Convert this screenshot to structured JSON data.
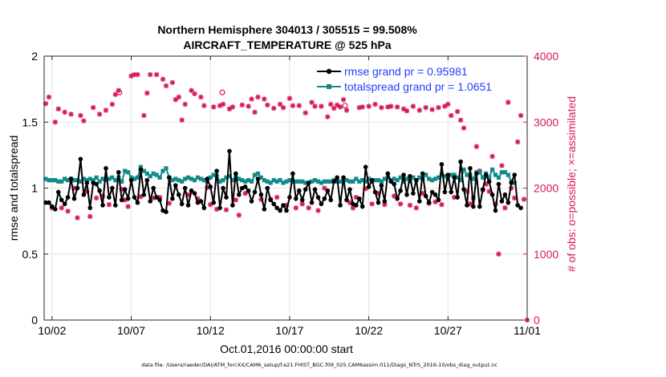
{
  "chart_data": {
    "type": "line",
    "title_line1": "Northern Hemisphere 304013 / 305515 = 99.508%",
    "title_line2": "AIRCRAFT_TEMPERATURE @ 525 hPa",
    "xlabel": "Oct.01,2016 00:00:00 start",
    "ylabel_left": "rmse and totalspread",
    "ylabel_right": "# of obs: o=possible; ×=assimilated",
    "footnote": "data file: /Users/raeder/DAI/ATM_forcXX/CAM6_setup/f.e21.FHIST_BGC.f09_025.CAM6assim.011/Diags_NTrS_2016-10/obs_diag_output.nc",
    "x_range_days": [
      0.5,
      31.0
    ],
    "x_ticks": [
      {
        "day": 1,
        "label": "10/02"
      },
      {
        "day": 6,
        "label": "10/07"
      },
      {
        "day": 11,
        "label": "10/12"
      },
      {
        "day": 16,
        "label": "10/17"
      },
      {
        "day": 21,
        "label": "10/22"
      },
      {
        "day": 26,
        "label": "10/27"
      },
      {
        "day": 31,
        "label": "11/01"
      }
    ],
    "ylim_left": [
      0,
      2
    ],
    "yticks_left": [
      "0",
      "0.5",
      "1",
      "1.5",
      "2"
    ],
    "ylim_right": [
      0,
      4000
    ],
    "yticks_right": [
      "0",
      "1000",
      "2000",
      "3000",
      "4000"
    ],
    "colors": {
      "rmse": "#000000",
      "spread": "#118a8a",
      "obs": "#d6185b",
      "legend_text": "#1f3fff"
    },
    "series": [
      {
        "name": "rmse",
        "legend": "rmse grand pr = 0.95981",
        "values": [
          0.89,
          0.89,
          0.86,
          0.84,
          0.97,
          0.91,
          0.88,
          0.93,
          1.07,
          0.92,
          1.0,
          1.22,
          0.95,
          1.04,
          0.85,
          1.04,
          1.03,
          0.98,
          0.87,
          1.15,
          0.93,
          1.0,
          0.87,
          1.12,
          0.91,
          0.99,
          0.92,
          1.06,
          0.93,
          0.89,
          1.14,
          0.95,
          1.06,
          0.9,
          1.0,
          0.93,
          0.91,
          0.83,
          0.82,
          1.08,
          0.92,
          1.02,
          0.95,
          0.88,
          1.0,
          0.87,
          0.98,
          0.96,
          0.89,
          0.9,
          0.85,
          1.07,
          1.01,
          0.89,
          1.13,
          0.85,
          1.0,
          0.93,
          1.28,
          0.87,
          1.11,
          0.95,
          1.0,
          1.01,
          0.98,
          0.9,
          0.97,
          1.07,
          0.95,
          0.84,
          1.0,
          0.91,
          0.88,
          0.85,
          0.83,
          0.87,
          0.83,
          0.93,
          1.11,
          0.92,
          0.98,
          0.91,
          0.99,
          1.04,
          0.89,
          0.99,
          0.93,
          0.88,
          0.92,
          0.98,
          0.91,
          1.05,
          1.08,
          0.87,
          1.08,
          0.91,
          0.99,
          0.88,
          0.87,
          0.92,
          0.86,
          1.16,
          1.01,
          1.06,
          0.97,
          0.89,
          1.02,
          0.9,
          1.11,
          1.05,
          1.03,
          0.92,
          0.98,
          1.1,
          0.95,
          1.09,
          0.96,
          1.06,
          0.9,
          1.11,
          0.94,
          0.89,
          0.97,
          0.95,
          0.91,
          1.18,
          0.97,
          1.1,
          0.97,
          1.08,
          0.93,
          1.2,
          0.99,
          0.87,
          1.15,
          0.86,
          1.11,
          0.86,
          0.99,
          1.1,
          1.05,
          0.95,
          0.83,
          1.03,
          0.9,
          0.95,
          0.89,
          1.04,
          1.1,
          0.87,
          0.85
        ]
      },
      {
        "name": "totalspread",
        "legend": "totalspread grand pr = 1.0651",
        "values": [
          1.07,
          1.06,
          1.06,
          1.06,
          1.05,
          1.05,
          1.07,
          1.06,
          1.07,
          1.06,
          1.06,
          1.05,
          1.07,
          1.06,
          1.07,
          1.06,
          1.08,
          1.05,
          1.07,
          1.06,
          1.07,
          1.08,
          1.06,
          1.08,
          1.05,
          1.13,
          1.12,
          1.08,
          1.07,
          1.08,
          1.16,
          1.13,
          1.11,
          1.09,
          1.11,
          1.1,
          1.08,
          1.13,
          1.15,
          1.08,
          1.06,
          1.07,
          1.06,
          1.05,
          1.07,
          1.08,
          1.07,
          1.06,
          1.08,
          1.07,
          1.06,
          1.05,
          1.08,
          1.1,
          1.09,
          1.05,
          1.06,
          1.08,
          1.09,
          1.06,
          1.1,
          1.07,
          1.06,
          1.05,
          1.06,
          1.05,
          1.1,
          1.11,
          1.08,
          1.06,
          1.05,
          1.04,
          1.06,
          1.05,
          1.06,
          1.04,
          1.05,
          1.06,
          1.05,
          1.05,
          1.05,
          1.05,
          1.04,
          1.04,
          1.05,
          1.06,
          1.05,
          1.04,
          1.05,
          1.05,
          1.05,
          1.06,
          1.05,
          1.05,
          1.06,
          1.06,
          1.05,
          1.05,
          1.07,
          1.05,
          1.06,
          1.05,
          1.07,
          1.05,
          1.06,
          1.06,
          1.05,
          1.07,
          1.08,
          1.06,
          1.07,
          1.06,
          1.08,
          1.05,
          1.07,
          1.05,
          1.08,
          1.06,
          1.08,
          1.07,
          1.1,
          1.07,
          1.06,
          1.07,
          1.08,
          1.1,
          1.09,
          1.07,
          1.1,
          1.1,
          1.08,
          1.06,
          1.14,
          1.1,
          1.1,
          1.07,
          1.12,
          1.12,
          1.08,
          1.11,
          1.08,
          1.14,
          1.1,
          1.08,
          1.12,
          1.12,
          1.1,
          1.05,
          1.04
        ]
      },
      {
        "name": "obs_count",
        "axis": "right",
        "values": [
          3280,
          3380,
          1700,
          3000,
          3200,
          1700,
          3150,
          1650,
          3120,
          2000,
          1550,
          3100,
          3020,
          1950,
          1570,
          3220,
          1850,
          3120,
          1880,
          3180,
          1750,
          3270,
          3420,
          3480,
          1980,
          1820,
          1720,
          3700,
          3720,
          3720,
          1870,
          3100,
          3440,
          3720,
          1850,
          3720,
          1860,
          3650,
          3550,
          1770,
          3600,
          3340,
          3380,
          3030,
          3270,
          1900,
          3480,
          3430,
          1840,
          3380,
          3250,
          2010,
          1750,
          3230,
          1680,
          3250,
          3270,
          1670,
          3200,
          3230,
          1820,
          1590,
          3260,
          1920,
          3240,
          3350,
          3150,
          3380,
          1830,
          3350,
          3260,
          1830,
          3210,
          1860,
          3270,
          3220,
          1740,
          3360,
          3250,
          1700,
          3250,
          1760,
          3140,
          1700,
          3300,
          3240,
          1660,
          3240,
          2000,
          3080,
          3270,
          3210,
          3260,
          3230,
          3340,
          3180,
          1780,
          1700,
          1860,
          3220,
          3230,
          1990,
          3240,
          1760,
          3270,
          1920,
          3220,
          1750,
          3230,
          3240,
          1880,
          3230,
          1760,
          3200,
          3170,
          1740,
          3240,
          1700,
          3180,
          1920,
          3220,
          1770,
          3190,
          1790,
          3220,
          1750,
          3240,
          3270,
          3100,
          1860,
          3160,
          3030,
          2910,
          1950,
          1760,
          1850,
          2630,
          2260,
          1970,
          2060,
          1950,
          2480,
          1760,
          1000,
          2340,
          1700,
          3300,
          2000,
          1850,
          2700,
          3100,
          1830,
          0
        ]
      }
    ],
    "possible_markers": [
      {
        "day": 5.25,
        "count": 3450
      },
      {
        "day": 11.75,
        "count": 3450
      },
      {
        "day": 19.5,
        "count": 3250
      }
    ]
  }
}
